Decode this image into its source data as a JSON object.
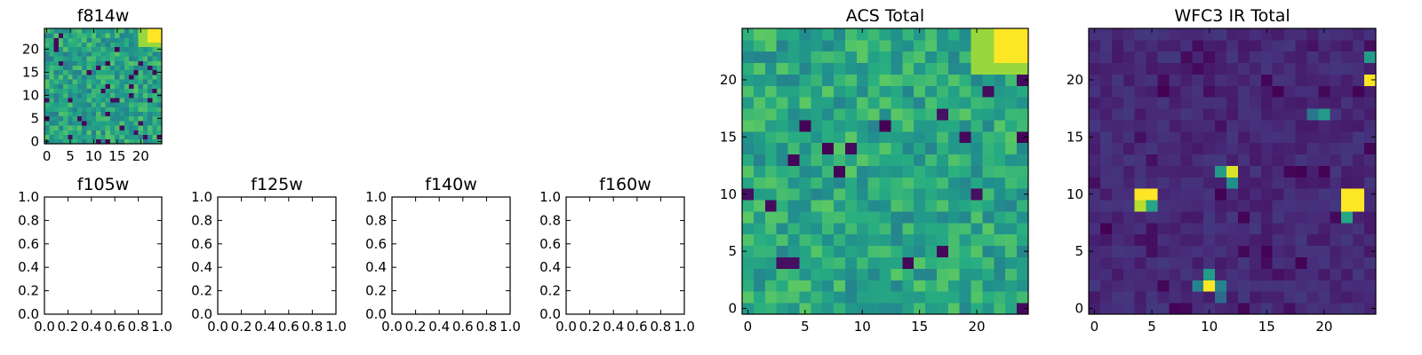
{
  "figure": {
    "background": "#ffffff",
    "colormap": "viridis",
    "colors": {
      "low": "#440154",
      "mid": "#21908c",
      "high": "#fde725"
    }
  },
  "chart_data": [
    {
      "id": "f814w",
      "type": "heatmap",
      "title": "f814w",
      "xlim": [
        -0.5,
        24.5
      ],
      "ylim": [
        -0.5,
        24.5
      ],
      "xticks": [
        0,
        5,
        10,
        15,
        20
      ],
      "yticks": [
        0,
        5,
        10,
        15,
        20
      ],
      "origin": "lower",
      "grid": false,
      "data": {
        "size": 25,
        "base": 0.58,
        "spread": 0.16,
        "seed": 81,
        "dark_prob": 0.06,
        "bright_corner": {
          "x": [
            22,
            24
          ],
          "y": [
            22,
            24
          ],
          "value": 1.0
        }
      }
    },
    {
      "id": "f105w",
      "type": "heatmap",
      "title": "f105w",
      "xlim": [
        0.0,
        1.0
      ],
      "ylim": [
        0.0,
        1.0
      ],
      "xticks": [
        0.0,
        0.2,
        0.4,
        0.6,
        0.8,
        1.0
      ],
      "yticks": [
        0.0,
        0.2,
        0.4,
        0.6,
        0.8,
        1.0
      ],
      "empty": true,
      "grid": false
    },
    {
      "id": "f125w",
      "type": "heatmap",
      "title": "f125w",
      "xlim": [
        0.0,
        1.0
      ],
      "ylim": [
        0.0,
        1.0
      ],
      "xticks": [
        0.0,
        0.2,
        0.4,
        0.6,
        0.8,
        1.0
      ],
      "yticks": [
        0.0,
        0.2,
        0.4,
        0.6,
        0.8,
        1.0
      ],
      "empty": true,
      "grid": false
    },
    {
      "id": "f140w",
      "type": "heatmap",
      "title": "f140w",
      "xlim": [
        0.0,
        1.0
      ],
      "ylim": [
        0.0,
        1.0
      ],
      "xticks": [
        0.0,
        0.2,
        0.4,
        0.6,
        0.8,
        1.0
      ],
      "yticks": [
        0.0,
        0.2,
        0.4,
        0.6,
        0.8,
        1.0
      ],
      "empty": true,
      "grid": false
    },
    {
      "id": "f160w",
      "type": "heatmap",
      "title": "f160w",
      "xlim": [
        0.0,
        1.0
      ],
      "ylim": [
        0.0,
        1.0
      ],
      "xticks": [
        0.0,
        0.2,
        0.4,
        0.6,
        0.8,
        1.0
      ],
      "yticks": [
        0.0,
        0.2,
        0.4,
        0.6,
        0.8,
        1.0
      ],
      "empty": true,
      "grid": false
    },
    {
      "id": "acs_total",
      "type": "heatmap",
      "title": "ACS Total",
      "xlim": [
        -0.5,
        24.5
      ],
      "ylim": [
        -0.5,
        24.5
      ],
      "xticks": [
        0,
        5,
        10,
        15,
        20
      ],
      "yticks": [
        0,
        5,
        10,
        15,
        20
      ],
      "origin": "lower",
      "grid": false,
      "data": {
        "size": 25,
        "base": 0.6,
        "spread": 0.15,
        "seed": 137,
        "dark_prob": 0.04,
        "bright_corner": {
          "x": [
            22,
            24
          ],
          "y": [
            22,
            24
          ],
          "value": 1.0
        }
      }
    },
    {
      "id": "wfc3_ir_total",
      "type": "heatmap",
      "title": "WFC3 IR Total",
      "xlim": [
        -0.5,
        24.5
      ],
      "ylim": [
        -0.5,
        24.5
      ],
      "xticks": [
        0,
        5,
        10,
        15,
        20
      ],
      "yticks": [
        0,
        5,
        10,
        15,
        20
      ],
      "origin": "lower",
      "grid": false,
      "data": {
        "size": 25,
        "base": 0.12,
        "spread": 0.05,
        "seed": 29,
        "dark_prob": 0.05,
        "hot_pixels": [
          {
            "x": 4,
            "y": 10,
            "value": 1.0
          },
          {
            "x": 5,
            "y": 10,
            "value": 1.0
          },
          {
            "x": 4,
            "y": 9,
            "value": 0.9
          },
          {
            "x": 5,
            "y": 9,
            "value": 0.6
          },
          {
            "x": 11,
            "y": 12,
            "value": 0.55
          },
          {
            "x": 12,
            "y": 12,
            "value": 0.95
          },
          {
            "x": 12,
            "y": 11,
            "value": 0.5
          },
          {
            "x": 22,
            "y": 10,
            "value": 1.0
          },
          {
            "x": 23,
            "y": 10,
            "value": 1.0
          },
          {
            "x": 22,
            "y": 9,
            "value": 1.0
          },
          {
            "x": 23,
            "y": 9,
            "value": 1.0
          },
          {
            "x": 22,
            "y": 8,
            "value": 0.6
          },
          {
            "x": 10,
            "y": 2,
            "value": 1.0
          },
          {
            "x": 10,
            "y": 3,
            "value": 0.55
          },
          {
            "x": 9,
            "y": 2,
            "value": 0.45
          },
          {
            "x": 11,
            "y": 2,
            "value": 0.45
          },
          {
            "x": 11,
            "y": 1,
            "value": 0.35
          },
          {
            "x": 20,
            "y": 17,
            "value": 0.55
          },
          {
            "x": 19,
            "y": 17,
            "value": 0.4
          },
          {
            "x": 24,
            "y": 20,
            "value": 1.0
          },
          {
            "x": 24,
            "y": 22,
            "value": 0.55
          }
        ]
      }
    }
  ]
}
